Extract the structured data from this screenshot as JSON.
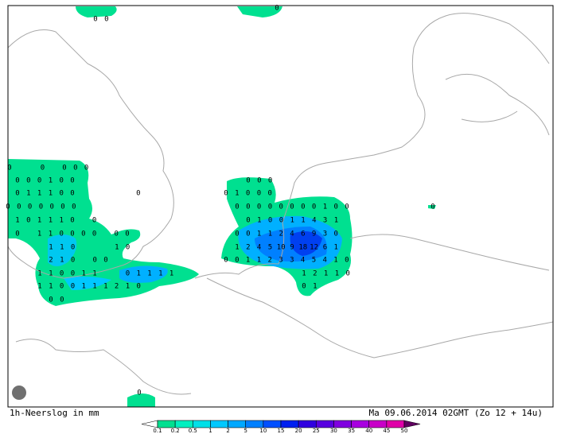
{
  "footer": {
    "left": "1h-Neerslog in mm",
    "right": "Ma 09.06.2014 02GMT (Zo 12 + 14u)"
  },
  "colorbar": {
    "ticks": [
      0.1,
      0.2,
      0.5,
      1,
      2,
      5,
      10,
      15,
      20,
      25,
      30,
      35,
      40,
      45,
      50
    ],
    "colors": [
      "#00e090",
      "#00f0c0",
      "#00e0e8",
      "#00c8ff",
      "#00a8ff",
      "#0080ff",
      "#0050ff",
      "#0020f0",
      "#3000e0",
      "#5800e0",
      "#8000e0",
      "#a800e0",
      "#c800c8",
      "#e000a8"
    ]
  },
  "grid_labels": [
    {
      "values": [
        0,
        0
      ]
    },
    {
      "values": [
        0
      ]
    },
    {
      "values": [
        0,
        null,
        null,
        0,
        null,
        0,
        0,
        0
      ]
    },
    {
      "values": [
        0,
        0,
        0,
        1,
        0,
        0
      ]
    },
    {
      "values": [
        0,
        1,
        1,
        1,
        0,
        0,
        null,
        null,
        null,
        null,
        null,
        0
      ]
    },
    {
      "values": [
        0,
        0,
        0,
        0,
        0,
        0,
        0
      ]
    },
    {
      "values": [
        1,
        0,
        1,
        1,
        1,
        0,
        null,
        0
      ]
    },
    {
      "values": [
        0,
        null,
        1,
        1,
        0,
        0,
        0,
        0,
        null,
        0,
        0
      ]
    },
    {
      "values": [
        1,
        1,
        0,
        null,
        null,
        null,
        1,
        0
      ]
    },
    {
      "values": [
        2,
        1,
        0,
        null,
        0,
        0
      ]
    },
    {
      "values": [
        1,
        1,
        0,
        0,
        1,
        1,
        null,
        null,
        0,
        1,
        1,
        1,
        1
      ]
    },
    {
      "values": [
        1,
        1,
        0,
        0,
        1,
        1,
        1,
        2,
        1,
        0
      ]
    },
    {
      "values": [
        0,
        0
      ]
    },
    {
      "values": [
        0,
        0,
        0
      ]
    },
    {
      "values": [
        0,
        1,
        0,
        0,
        0
      ]
    },
    {
      "values": [
        0,
        0,
        0,
        0,
        0,
        0,
        0,
        0,
        1,
        0,
        0
      ]
    },
    {
      "values": [
        0,
        1,
        0,
        0,
        1,
        1,
        4,
        3,
        1
      ]
    },
    {
      "values": [
        0,
        0,
        1,
        1,
        2,
        4,
        6,
        9,
        3,
        0
      ]
    },
    {
      "values": [
        1,
        2,
        4,
        5,
        10,
        9,
        18,
        12,
        6,
        1
      ]
    },
    {
      "values": [
        0,
        0,
        1,
        1,
        2,
        3,
        3,
        4,
        5,
        4,
        1,
        0
      ]
    },
    {
      "values": [
        1,
        2,
        1,
        1,
        0
      ]
    },
    {
      "values": [
        0,
        1
      ]
    },
    {
      "values": [
        0
      ]
    },
    {
      "values": [
        0
      ]
    }
  ]
}
